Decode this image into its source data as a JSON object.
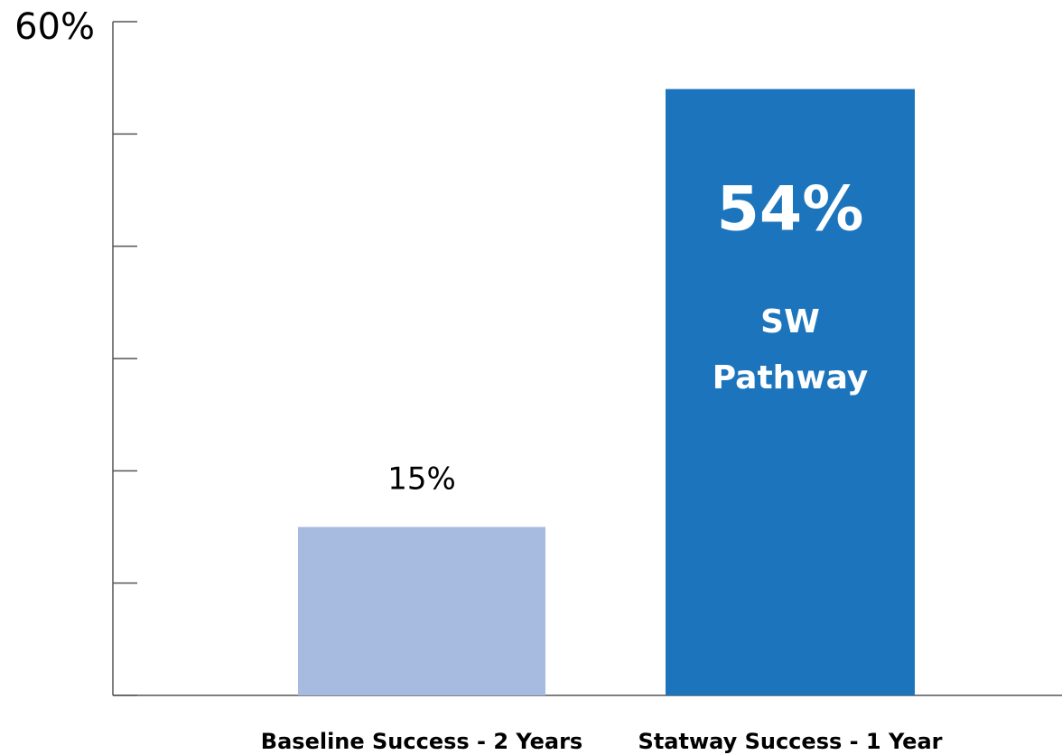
{
  "chart_data": {
    "type": "bar",
    "categories": [
      "Baseline Success - 2 Years",
      "Statway Success - 1 Year"
    ],
    "values": [
      15,
      54
    ],
    "value_labels": [
      "15%",
      "54%"
    ],
    "colors": [
      "#a7badf",
      "#1c75bc"
    ],
    "annotation": [
      "SW",
      "Pathway"
    ],
    "ylim": [
      0,
      60
    ],
    "yticks": [
      {
        "value": 0,
        "label": null
      },
      {
        "value": 10,
        "label": null
      },
      {
        "value": 20,
        "label": null
      },
      {
        "value": 30,
        "label": null
      },
      {
        "value": 40,
        "label": null
      },
      {
        "value": 50,
        "label": null
      },
      {
        "value": 60,
        "label": "60%"
      }
    ]
  }
}
